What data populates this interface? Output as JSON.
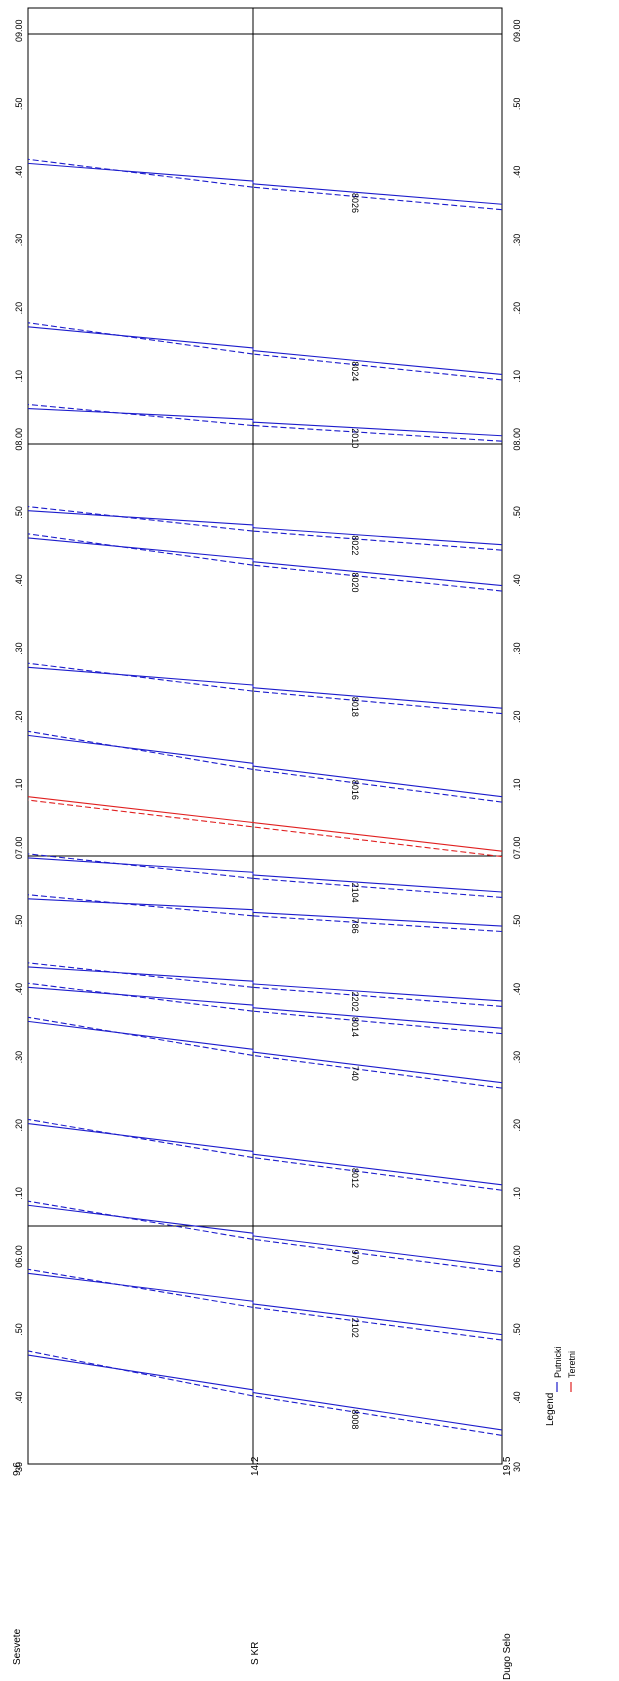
{
  "stations": [
    {
      "name": "Sesvete",
      "km": "9.6"
    },
    {
      "name": "S KR",
      "km": "14.2"
    },
    {
      "name": "Dugo Selo",
      "km": "19.5"
    }
  ],
  "time_labels": [
    "30",
    ".40",
    ".50",
    "06.00",
    ".10",
    ".20",
    ".30",
    ".40",
    ".50",
    "07.00",
    ".10",
    ".20",
    ".30",
    ".40",
    ".50",
    "08.00",
    ".10",
    ".20",
    ".30",
    ".40",
    ".50",
    "09.00"
  ],
  "legend": {
    "title": "Legend",
    "items": [
      {
        "label": "Putnicki",
        "color": "#1c1ccc"
      },
      {
        "label": "Teretni",
        "color": "#e02020"
      }
    ]
  },
  "colors": {
    "passenger": "#1c1ccc",
    "freight": "#e02020",
    "axis": "#000000"
  },
  "chart_data": {
    "type": "line",
    "x_axis": {
      "label": "",
      "range": [
        "05:30",
        "09:00"
      ]
    },
    "y_axis": {
      "labels": [
        "Sesvete 9.6",
        "S KR 14.2",
        "Dugo Selo 19.5"
      ]
    },
    "trains": [
      {
        "number": "8008",
        "dir": "up",
        "start_min": 335,
        "end_min": 346
      },
      {
        "number": "2102",
        "dir": "up",
        "start_min": 349,
        "end_min": 358
      },
      {
        "number": "970",
        "dir": "up",
        "start_min": 359,
        "end_min": 368
      },
      {
        "number": "8012",
        "dir": "up",
        "start_min": 371,
        "end_min": 380
      },
      {
        "number": "740",
        "dir": "up",
        "start_min": 386,
        "end_min": 395
      },
      {
        "number": "8014",
        "dir": "up",
        "start_min": 394,
        "end_min": 400
      },
      {
        "number": "2202",
        "dir": "up",
        "start_min": 398,
        "end_min": 403
      },
      {
        "number": "786",
        "dir": "up",
        "start_min": 409,
        "end_min": 413
      },
      {
        "number": "2104",
        "dir": "up",
        "start_min": 414,
        "end_min": 419
      },
      {
        "number": "8016",
        "dir": "up",
        "start_min": 428,
        "end_min": 437
      },
      {
        "number": "8018",
        "dir": "up",
        "start_min": 441,
        "end_min": 447
      },
      {
        "number": "8020",
        "dir": "up",
        "start_min": 459,
        "end_min": 466
      },
      {
        "number": "8022",
        "dir": "up",
        "start_min": 465,
        "end_min": 470
      },
      {
        "number": "2010",
        "dir": "up",
        "start_min": 481,
        "end_min": 485
      },
      {
        "number": "8024",
        "dir": "up",
        "start_min": 490,
        "end_min": 497
      },
      {
        "number": "8026",
        "dir": "up",
        "start_min": 515,
        "end_min": 521
      }
    ],
    "freight": [
      {
        "start_min": 420,
        "end_min": 428
      }
    ]
  }
}
